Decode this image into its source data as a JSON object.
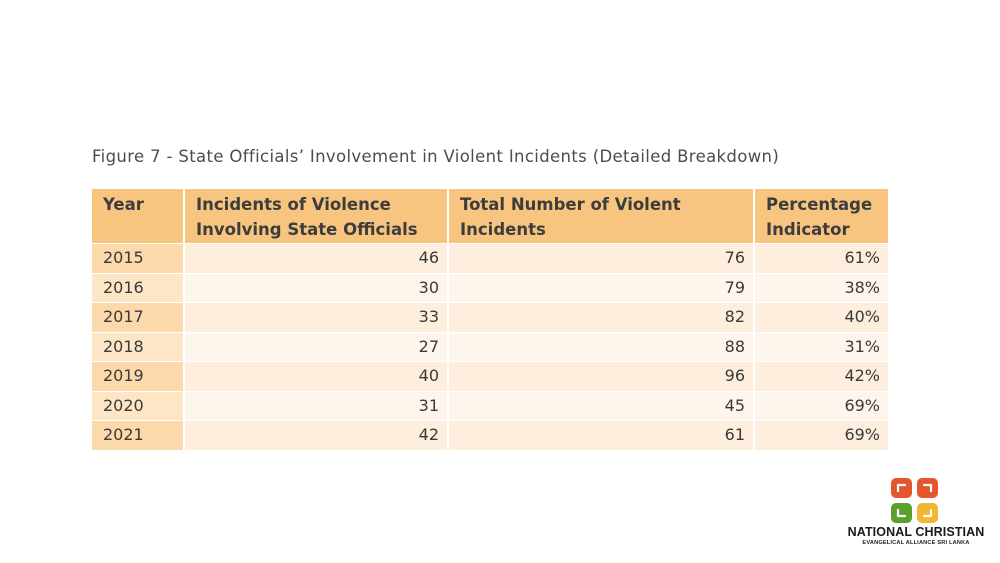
{
  "figure": {
    "title": "Figure 7 - State Officials’ Involvement in Violent Incidents (Detailed Breakdown)"
  },
  "table": {
    "headers": [
      [
        "Year"
      ],
      [
        "Incidents of Violence",
        "Involving State Officials"
      ],
      [
        "Total Number of Violent",
        "Incidents"
      ],
      [
        "Percentage",
        "Indicator"
      ]
    ],
    "rows": [
      [
        "2015",
        "46",
        "76",
        "61%"
      ],
      [
        "2016",
        "30",
        "79",
        "38%"
      ],
      [
        "2017",
        "33",
        "82",
        "40%"
      ],
      [
        "2018",
        "27",
        "88",
        "31%"
      ],
      [
        "2019",
        "40",
        "96",
        "42%"
      ],
      [
        "2020",
        "31",
        "45",
        "69%"
      ],
      [
        "2021",
        "42",
        "61",
        "69%"
      ]
    ]
  },
  "logo": {
    "name": "NATIONAL CHRISTIAN",
    "subtitle": "EVANGELICAL ALLIANCE SRI LANKA",
    "icon": "four-squares-logo-icon",
    "colors": [
      "#e4572e",
      "#e4572e",
      "#5aa02c",
      "#f2b632"
    ]
  }
}
